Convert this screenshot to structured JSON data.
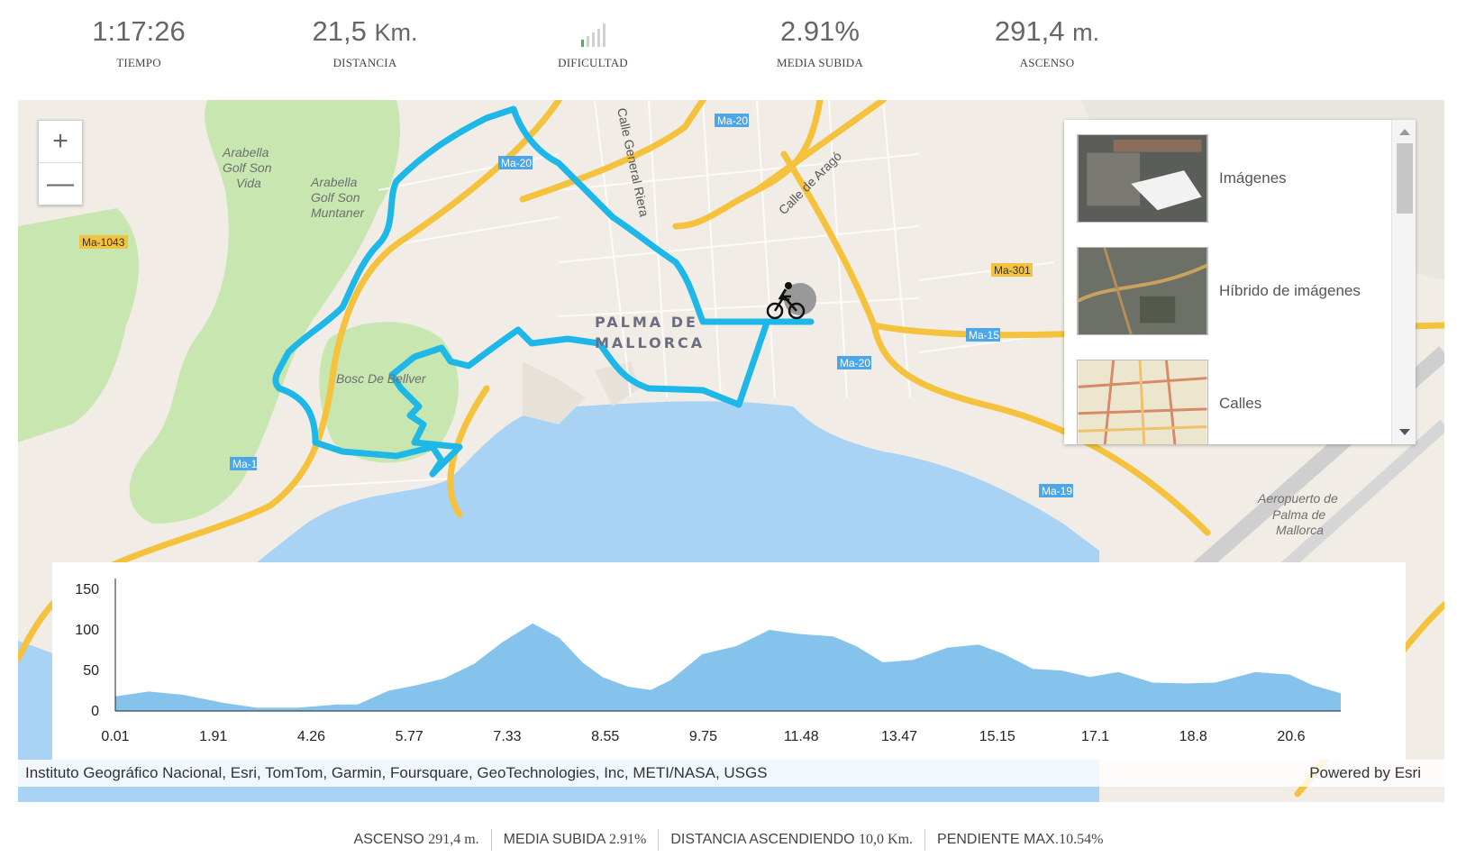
{
  "stats": {
    "time": {
      "value": "1:17:26",
      "label": "TIEMPO"
    },
    "distance": {
      "value": "21,5",
      "unit": "Km.",
      "label": "DISTANCIA"
    },
    "difficulty": {
      "label": "DIFICULTAD",
      "level": 1,
      "max": 5
    },
    "avg_climb": {
      "value": "2.91%",
      "label": "MEDIA SUBIDA"
    },
    "ascent": {
      "value": "291,4",
      "unit": "m.",
      "label": "ASCENSO"
    }
  },
  "map": {
    "zoom_in": "+",
    "zoom_out": "—",
    "city_label_1": "PALMA DE",
    "city_label_2": "MALLORCA",
    "places": [
      "Arabella",
      "Golf Son",
      "Vida",
      "Arabella",
      "Golf Son",
      "Muntaner",
      "Bosc De Bellver",
      "Aeropuerto de",
      "Palma de",
      "Mallorca"
    ],
    "streets": [
      "Calle General Riera",
      "Calle de Aragó"
    ],
    "road_shields": [
      "Ma-20",
      "Ma-20",
      "Ma-1043",
      "Ma-301",
      "Ma-15",
      "Ma-20",
      "Ma-1",
      "Ma-19"
    ],
    "route_color": "#1eb8e8",
    "attribution": "Instituto Geográfico Nacional, Esri, TomTom, Garmin, Foursquare, GeoTechnologies, Inc, METI/NASA, USGS",
    "powered_by": "Powered by Esri"
  },
  "basemap_gallery": {
    "items": [
      {
        "label": "Imágenes"
      },
      {
        "label": "Híbrido de imágenes"
      },
      {
        "label": "Calles"
      }
    ]
  },
  "elevation_profile": {
    "fill_color": "#86c3ec",
    "y_ticks": [
      "150",
      "100",
      "50",
      "0"
    ],
    "x_ticks": [
      "0.01",
      "1.91",
      "4.26",
      "5.77",
      "7.33",
      "8.55",
      "9.75",
      "11.48",
      "13.47",
      "15.15",
      "17.1",
      "18.8",
      "20.6"
    ]
  },
  "chart_data": {
    "type": "area",
    "xlabel": "",
    "ylabel": "",
    "ylim": [
      0,
      150
    ],
    "xlim": [
      0.01,
      21.5
    ],
    "x": [
      0.01,
      0.6,
      1.2,
      1.91,
      2.5,
      3.2,
      3.9,
      4.26,
      4.8,
      5.3,
      5.77,
      6.3,
      6.8,
      7.33,
      7.8,
      8.2,
      8.55,
      9.0,
      9.4,
      9.75,
      10.3,
      10.9,
      11.48,
      12.0,
      12.6,
      13.0,
      13.47,
      14.0,
      14.6,
      15.15,
      15.6,
      16.1,
      16.6,
      17.1,
      17.6,
      18.2,
      18.8,
      19.3,
      20.0,
      20.6,
      21.0,
      21.5
    ],
    "series": [
      {
        "values": [
          18,
          24,
          20,
          10,
          4,
          4,
          8,
          8,
          25,
          32,
          40,
          58,
          85,
          108,
          90,
          60,
          42,
          30,
          26,
          38,
          70,
          80,
          100,
          95,
          92,
          80,
          60,
          63,
          78,
          82,
          70,
          52,
          50,
          42,
          48,
          35,
          34,
          35,
          48,
          45,
          32,
          22
        ]
      }
    ]
  },
  "summary": {
    "ascent_label": "ASCENSO",
    "ascent_value": "291,4 m.",
    "avg_label": "MEDIA SUBIDA",
    "avg_value": "2.91%",
    "dist_label": "DISTANCIA ASCENDIENDO",
    "dist_value": "10,0 Km.",
    "slope_label": "PENDIENTE MAX.",
    "slope_value": "10.54%"
  }
}
